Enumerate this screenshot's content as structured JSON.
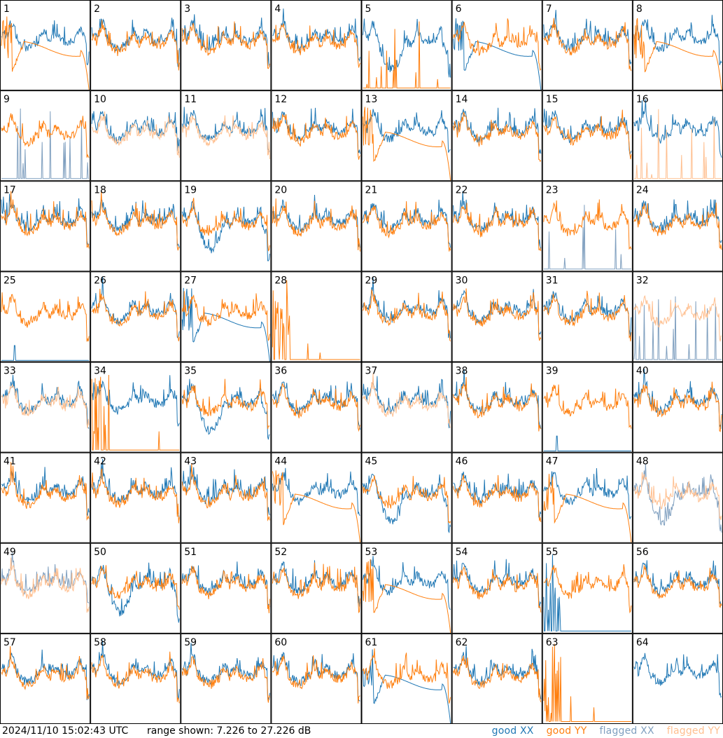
{
  "chart_data": {
    "type": "line",
    "panels": [
      "1",
      "2",
      "3",
      "4",
      "5",
      "6",
      "7",
      "8",
      "9",
      "10",
      "11",
      "12",
      "13",
      "14",
      "15",
      "16",
      "17",
      "18",
      "19",
      "20",
      "21",
      "22",
      "23",
      "24",
      "25",
      "26",
      "27",
      "28",
      "29",
      "30",
      "31",
      "32",
      "33",
      "34",
      "35",
      "36",
      "37",
      "38",
      "39",
      "40",
      "41",
      "42",
      "43",
      "44",
      "45",
      "46",
      "47",
      "48",
      "49",
      "50",
      "51",
      "52",
      "53",
      "54",
      "55",
      "56",
      "57",
      "58",
      "59",
      "60",
      "61",
      "62",
      "63",
      "64"
    ],
    "series": [
      {
        "name": "good XX",
        "color": "#1f77b4"
      },
      {
        "name": "good YY",
        "color": "#ff7f0e"
      },
      {
        "name": "flagged XX",
        "color": "#7f9fbf"
      },
      {
        "name": "flagged YY",
        "color": "#ffbf8f"
      }
    ],
    "ylim": [
      7.226,
      27.226
    ],
    "ylabel": "",
    "xlabel": "",
    "grid": false,
    "legend_position": "bottom-right",
    "panel_shapes": {
      "1": {
        "xx": "normal",
        "yy": "curve"
      },
      "2": {
        "xx": "normal",
        "yy": "normal"
      },
      "3": {
        "xx": "normal",
        "yy": "normal"
      },
      "4": {
        "xx": "normal",
        "yy": "normal"
      },
      "5": {
        "xx": "dip",
        "yy": "spikes"
      },
      "6": {
        "xx": "curve",
        "yy": "normal"
      },
      "7": {
        "xx": "normal",
        "yy": "normal"
      },
      "8": {
        "xx": "normal",
        "yy": "curve"
      },
      "9": {
        "xx": "flagged-spikes",
        "yy": "normal"
      },
      "10": {
        "xx": "normal",
        "yy": "flagged-normal"
      },
      "11": {
        "xx": "normal",
        "yy": "flagged-normal"
      },
      "12": {
        "xx": "normal",
        "yy": "normal"
      },
      "13": {
        "xx": "normal",
        "yy": "curve"
      },
      "14": {
        "xx": "normal",
        "yy": "normal"
      },
      "15": {
        "xx": "normal",
        "yy": "normal"
      },
      "16": {
        "xx": "normal",
        "yy": "flagged-spikes"
      },
      "17": {
        "xx": "normal",
        "yy": "normal"
      },
      "18": {
        "xx": "normal",
        "yy": "normal"
      },
      "19": {
        "xx": "dip",
        "yy": "normal"
      },
      "20": {
        "xx": "normal",
        "yy": "normal"
      },
      "21": {
        "xx": "normal",
        "yy": "normal"
      },
      "22": {
        "xx": "normal",
        "yy": "normal"
      },
      "23": {
        "xx": "flagged-spikes",
        "yy": "normal"
      },
      "24": {
        "xx": "normal",
        "yy": "normal"
      },
      "25": {
        "xx": "low-spike",
        "yy": "normal"
      },
      "26": {
        "xx": "normal",
        "yy": "normal"
      },
      "27": {
        "xx": "curve",
        "yy": "normal"
      },
      "28": {
        "xx": "none",
        "yy": "spikes-left"
      },
      "29": {
        "xx": "normal",
        "yy": "normal"
      },
      "30": {
        "xx": "normal",
        "yy": "normal"
      },
      "31": {
        "xx": "normal",
        "yy": "normal"
      },
      "32": {
        "xx": "flagged-spikes",
        "yy": "flagged-normal"
      },
      "33": {
        "xx": "normal",
        "yy": "flagged-normal"
      },
      "34": {
        "xx": "normal",
        "yy": "spikes-left"
      },
      "35": {
        "xx": "dip",
        "yy": "normal"
      },
      "36": {
        "xx": "normal",
        "yy": "normal"
      },
      "37": {
        "xx": "normal",
        "yy": "flagged-normal"
      },
      "38": {
        "xx": "normal",
        "yy": "normal"
      },
      "39": {
        "xx": "low-spike",
        "yy": "normal"
      },
      "40": {
        "xx": "normal",
        "yy": "normal"
      },
      "41": {
        "xx": "normal",
        "yy": "normal"
      },
      "42": {
        "xx": "normal",
        "yy": "normal"
      },
      "43": {
        "xx": "normal",
        "yy": "normal"
      },
      "44": {
        "xx": "normal",
        "yy": "curve"
      },
      "45": {
        "xx": "dip",
        "yy": "normal"
      },
      "46": {
        "xx": "normal",
        "yy": "normal"
      },
      "47": {
        "xx": "normal",
        "yy": "curve"
      },
      "48": {
        "xx": "flagged-dip",
        "yy": "flagged-normal"
      },
      "49": {
        "xx": "flagged-normal",
        "yy": "flagged-normal"
      },
      "50": {
        "xx": "dip",
        "yy": "normal"
      },
      "51": {
        "xx": "normal",
        "yy": "normal"
      },
      "52": {
        "xx": "normal",
        "yy": "normal"
      },
      "53": {
        "xx": "normal",
        "yy": "curve"
      },
      "54": {
        "xx": "normal",
        "yy": "normal"
      },
      "55": {
        "xx": "spikes-left",
        "yy": "normal"
      },
      "56": {
        "xx": "normal",
        "yy": "normal"
      },
      "57": {
        "xx": "normal",
        "yy": "normal"
      },
      "58": {
        "xx": "normal",
        "yy": "normal"
      },
      "59": {
        "xx": "normal",
        "yy": "normal"
      },
      "60": {
        "xx": "normal",
        "yy": "normal"
      },
      "61": {
        "xx": "curve",
        "yy": "normal"
      },
      "62": {
        "xx": "normal",
        "yy": "normal"
      },
      "63": {
        "xx": "none",
        "yy": "spikes-left"
      },
      "64": {
        "xx": "normal",
        "yy": "none"
      }
    }
  },
  "footer": {
    "timestamp": "2024/11/10 15:02:43 UTC",
    "range_text": "range shown: 7.226 to 27.226 dB",
    "legend": [
      "good XX",
      "good YY",
      "flagged XX",
      "flagged YY"
    ]
  }
}
